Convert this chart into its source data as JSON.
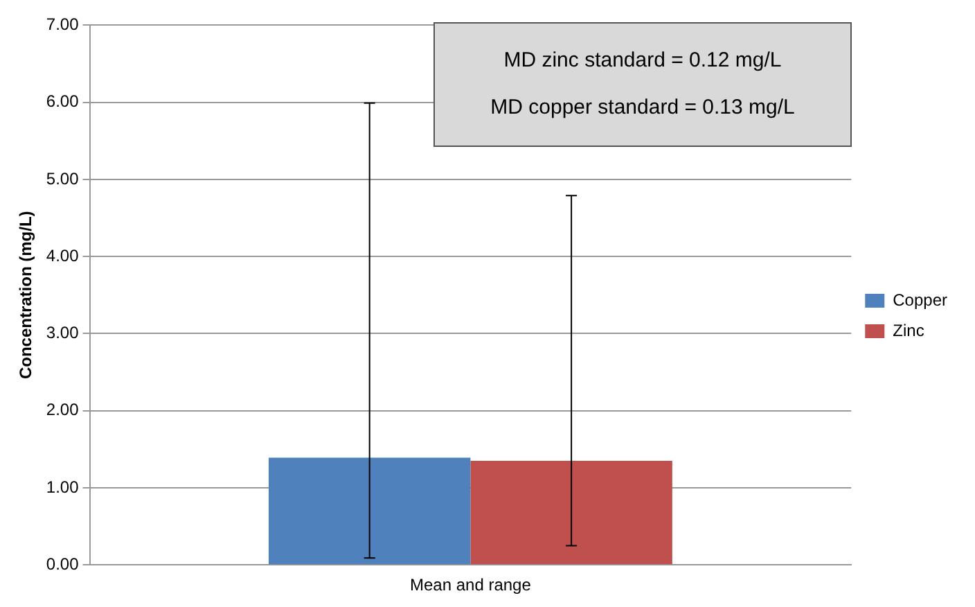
{
  "chart_data": {
    "type": "bar",
    "ylabel": "Concentration (mg/L)",
    "categories": [
      "Mean and range"
    ],
    "series": [
      {
        "name": "Copper",
        "color": "#4f81bd",
        "values": [
          1.39
        ],
        "errors": [
          [
            0.09,
            5.99
          ]
        ]
      },
      {
        "name": "Zinc",
        "color": "#c0504d",
        "values": [
          1.35
        ],
        "errors": [
          [
            0.25,
            4.79
          ]
        ]
      }
    ],
    "ylim": [
      0,
      7
    ],
    "yticks": [
      {
        "value": 0,
        "label": "0.00"
      },
      {
        "value": 1,
        "label": "1.00"
      },
      {
        "value": 2,
        "label": "2.00"
      },
      {
        "value": 3,
        "label": "3.00"
      },
      {
        "value": 4,
        "label": "4.00"
      },
      {
        "value": 5,
        "label": "5.00"
      },
      {
        "value": 6,
        "label": "6.00"
      },
      {
        "value": 7,
        "label": "7.00"
      }
    ],
    "grid": "y",
    "legend": "right",
    "annotations": [
      "MD zinc standard = 0.12 mg/L",
      "MD copper standard = 0.13 mg/L"
    ]
  }
}
